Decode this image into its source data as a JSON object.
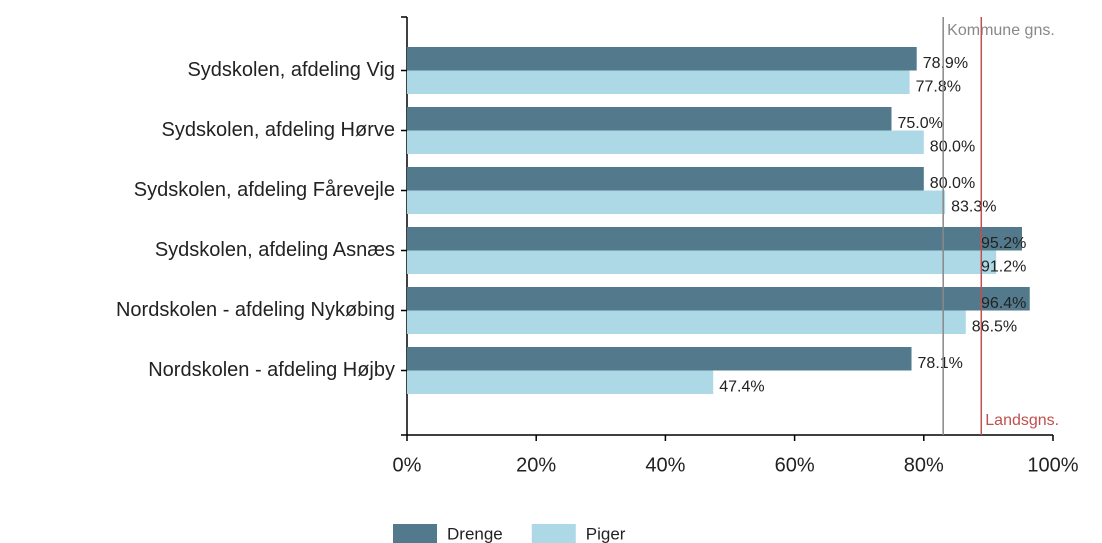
{
  "chart_data": {
    "type": "bar",
    "orientation": "horizontal",
    "categories": [
      "Sydskolen, afdeling Vig",
      "Sydskolen, afdeling Hørve",
      "Sydskolen, afdeling Fårevejle",
      "Sydskolen, afdeling Asnæs",
      "Nordskolen - afdeling Nykøbing",
      "Nordskolen - afdeling Højby"
    ],
    "series": [
      {
        "name": "Drenge",
        "color": "#527a8c",
        "values": [
          78.9,
          75.0,
          80.0,
          95.2,
          96.4,
          78.1
        ],
        "value_labels": [
          "78.9%",
          "75.0%",
          "80.0%",
          "95.2%",
          "96.4%",
          "78.1%"
        ]
      },
      {
        "name": "Piger",
        "color": "#add8e6",
        "values": [
          77.8,
          80.0,
          83.3,
          91.2,
          86.5,
          47.4
        ],
        "value_labels": [
          "77.8%",
          "80.0%",
          "83.3%",
          "91.2%",
          "86.5%",
          "47.4%"
        ]
      }
    ],
    "xlim": [
      0,
      100
    ],
    "xticks": [
      {
        "value": 0,
        "label": "0%"
      },
      {
        "value": 20,
        "label": "20%"
      },
      {
        "value": 40,
        "label": "40%"
      },
      {
        "value": 60,
        "label": "60%"
      },
      {
        "value": 80,
        "label": "80%"
      },
      {
        "value": 100,
        "label": "100%"
      }
    ],
    "reference_lines": [
      {
        "label": "Kommune gns.",
        "value": 83.0,
        "color": "#888888"
      },
      {
        "label": "Landsgns.",
        "value": 88.9,
        "color": "#c0504d"
      }
    ],
    "legend": "bottom"
  }
}
